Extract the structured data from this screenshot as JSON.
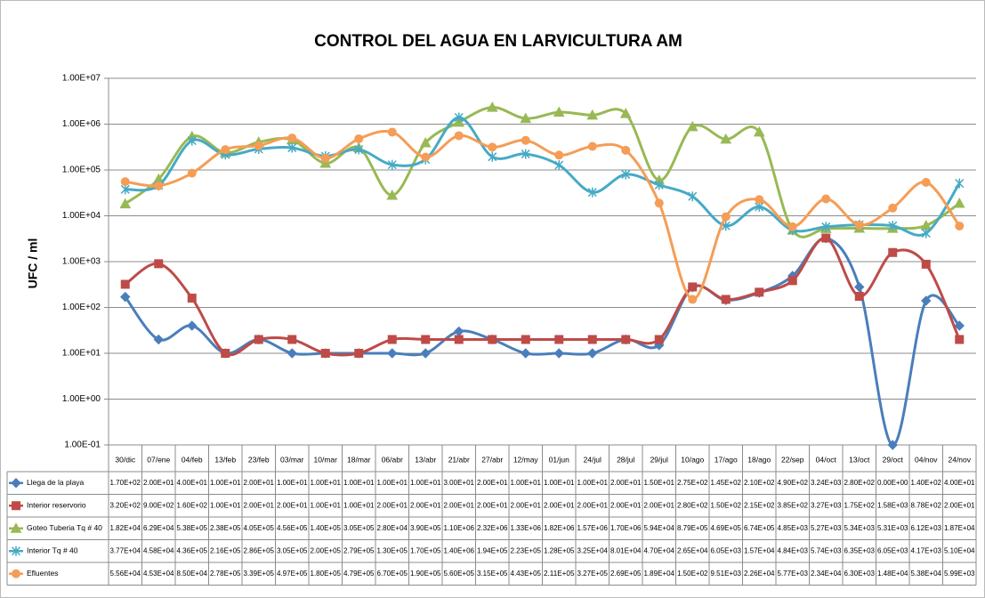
{
  "chart_data": {
    "type": "line",
    "title": "CONTROL DEL AGUA EN LARVICULTURA AM",
    "y_label": "UFC / ml",
    "log_scale": true,
    "grid": true,
    "smooth": true,
    "categories": [
      "30/dic",
      "07/ene",
      "04/feb",
      "13/feb",
      "23/feb",
      "03/mar",
      "10/mar",
      "18/mar",
      "06/abr",
      "13/abr",
      "21/abr",
      "27/abr",
      "12/may",
      "01/jun",
      "24/jul",
      "28/jul",
      "29/jul",
      "10/ago",
      "17/ago",
      "18/ago",
      "22/sep",
      "04/oct",
      "13/oct",
      "29/oct",
      "04/nov",
      "24/nov"
    ],
    "ylim": [
      0.1,
      10000000
    ],
    "yticks": [
      {
        "value": 0.1,
        "label": "1.00E-01"
      },
      {
        "value": 1,
        "label": "1.00E+00"
      },
      {
        "value": 10,
        "label": "1.00E+01"
      },
      {
        "value": 100,
        "label": "1.00E+02"
      },
      {
        "value": 1000,
        "label": "1.00E+03"
      },
      {
        "value": 10000,
        "label": "1.00E+04"
      },
      {
        "value": 100000,
        "label": "1.00E+05"
      },
      {
        "value": 1000000,
        "label": "1.00E+06"
      },
      {
        "value": 10000000,
        "label": "1.00E+07"
      }
    ],
    "series": [
      {
        "name": "Llega de la playa",
        "color": "#4a7ebb",
        "marker": "diamond",
        "values": [
          170,
          20,
          40,
          10,
          20,
          10,
          10,
          10,
          10,
          10,
          30,
          20,
          10,
          10,
          10,
          20,
          15,
          275,
          145,
          210,
          490,
          3240,
          280,
          0,
          140,
          40
        ],
        "value_labels": [
          "1.70E+02",
          "2.00E+01",
          "4.00E+01",
          "1.00E+01",
          "2.00E+01",
          "1.00E+01",
          "1.00E+01",
          "1.00E+01",
          "1.00E+01",
          "1.00E+01",
          "3.00E+01",
          "2.00E+01",
          "1.00E+01",
          "1.00E+01",
          "1.00E+01",
          "2.00E+01",
          "1.50E+01",
          "2.75E+02",
          "1.45E+02",
          "2.10E+02",
          "4.90E+02",
          "3.24E+03",
          "2.80E+02",
          "0.00E+00",
          "1.40E+02",
          "4.00E+01"
        ]
      },
      {
        "name": "Interior reservorio",
        "color": "#be4b48",
        "marker": "square",
        "values": [
          320,
          900,
          160,
          10,
          20,
          20,
          10,
          10,
          20,
          20,
          20,
          20,
          20,
          20,
          20,
          20,
          20,
          280,
          150,
          215,
          385,
          3270,
          175,
          1580,
          878,
          20
        ],
        "value_labels": [
          "3.20E+02",
          "9.00E+02",
          "1.60E+02",
          "1.00E+01",
          "2.00E+01",
          "2.00E+01",
          "1.00E+01",
          "1.00E+01",
          "2.00E+01",
          "2.00E+01",
          "2.00E+01",
          "2.00E+01",
          "2.00E+01",
          "2.00E+01",
          "2.00E+01",
          "2.00E+01",
          "2.00E+01",
          "2.80E+02",
          "1.50E+02",
          "2.15E+02",
          "3.85E+02",
          "3.27E+03",
          "1.75E+02",
          "1.58E+03",
          "8.78E+02",
          "2.00E+01"
        ]
      },
      {
        "name": "Goteo Tuberia Tq # 40",
        "color": "#98b954",
        "marker": "triangle",
        "values": [
          18200,
          62900,
          538000,
          238000,
          405000,
          456000,
          140000,
          305000,
          28000,
          390000,
          1100000,
          2320000,
          1330000,
          1820000,
          1570000,
          1700000,
          59400,
          879000,
          469000,
          674000,
          4850,
          5270,
          5340,
          5310,
          6120,
          18700
        ],
        "value_labels": [
          "1.82E+04",
          "6.29E+04",
          "5.38E+05",
          "2.38E+05",
          "4.05E+05",
          "4.56E+05",
          "1.40E+05",
          "3.05E+05",
          "2.80E+04",
          "3.90E+05",
          "1.10E+06",
          "2.32E+06",
          "1.33E+06",
          "1.82E+06",
          "1.57E+06",
          "1.70E+06",
          "5.94E+04",
          "8.79E+05",
          "4.69E+05",
          "6.74E+05",
          "4.85E+03",
          "5.27E+03",
          "5.34E+03",
          "5.31E+03",
          "6.12E+03",
          "1.87E+04"
        ]
      },
      {
        "name": "Interior Tq # 40",
        "color": "#46aac5",
        "marker": "star",
        "values": [
          37700,
          45800,
          436000,
          216000,
          286000,
          305000,
          200000,
          279000,
          130000,
          170000,
          1400000,
          194000,
          223000,
          128000,
          32500,
          80100,
          47000,
          26500,
          6050,
          15700,
          4840,
          5740,
          6350,
          6050,
          4170,
          51000
        ],
        "value_labels": [
          "3.77E+04",
          "4.58E+04",
          "4.36E+05",
          "2.16E+05",
          "2.86E+05",
          "3.05E+05",
          "2.00E+05",
          "2.79E+05",
          "1.30E+05",
          "1.70E+05",
          "1.40E+06",
          "1.94E+05",
          "2.23E+05",
          "1.28E+05",
          "3.25E+04",
          "8.01E+04",
          "4.70E+04",
          "2.65E+04",
          "6.05E+03",
          "1.57E+04",
          "4.84E+03",
          "5.74E+03",
          "6.35E+03",
          "6.05E+03",
          "4.17E+03",
          "5.10E+04"
        ]
      },
      {
        "name": "Efluentes",
        "color": "#f59d56",
        "marker": "circle",
        "values": [
          55600,
          45300,
          85000,
          278000,
          339000,
          497000,
          180000,
          479000,
          670000,
          190000,
          560000,
          315000,
          443000,
          211000,
          327000,
          269000,
          18900,
          150,
          9510,
          22600,
          5770,
          23400,
          6300,
          14800,
          53800,
          5990
        ],
        "value_labels": [
          "5.56E+04",
          "4.53E+04",
          "8.50E+04",
          "2.78E+05",
          "3.39E+05",
          "4.97E+05",
          "1.80E+05",
          "4.79E+05",
          "6.70E+05",
          "1.90E+05",
          "5.60E+05",
          "3.15E+05",
          "4.43E+05",
          "2.11E+05",
          "3.27E+05",
          "2.69E+05",
          "1.89E+04",
          "1.50E+02",
          "9.51E+03",
          "2.26E+04",
          "5.77E+03",
          "2.34E+04",
          "6.30E+03",
          "1.48E+04",
          "5.38E+04",
          "5.99E+03"
        ]
      }
    ]
  }
}
